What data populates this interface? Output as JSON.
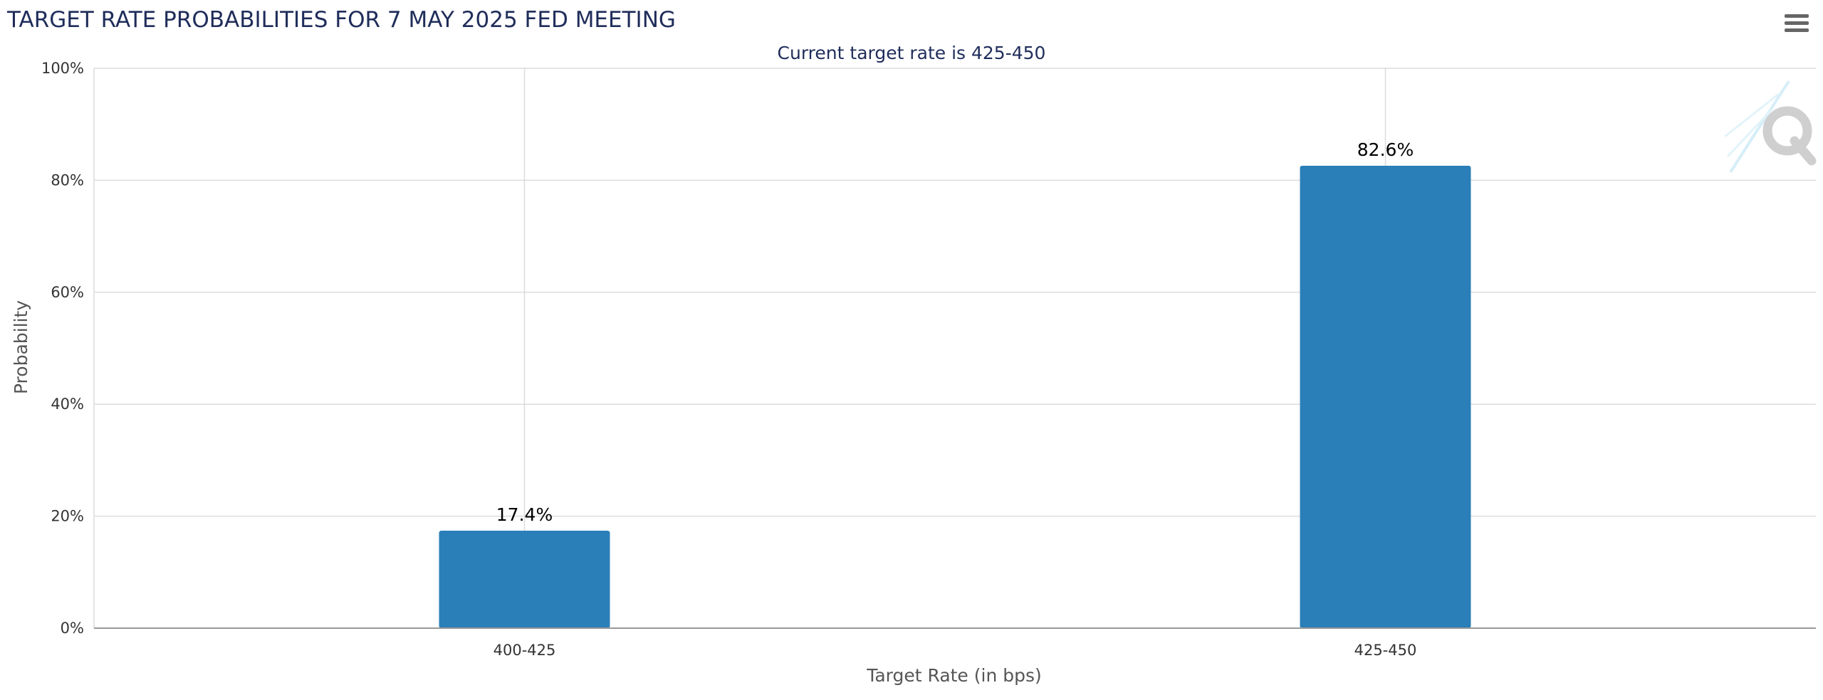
{
  "chart_data": {
    "type": "bar",
    "title": "TARGET RATE PROBABILITIES FOR 7 MAY 2025 FED MEETING",
    "subtitle": "Current target rate is 425-450",
    "xlabel": "Target Rate (in bps)",
    "ylabel": "Probability",
    "categories": [
      "400-425",
      "425-450"
    ],
    "values": [
      17.4,
      82.6
    ],
    "value_labels": [
      "17.4%",
      "82.6%"
    ],
    "ylim": [
      0,
      100
    ],
    "y_ticks": [
      0,
      20,
      40,
      60,
      80,
      100
    ],
    "y_tick_labels": [
      "0%",
      "20%",
      "40%",
      "60%",
      "80%",
      "100%"
    ],
    "grid": true,
    "legend": "none",
    "bar_color": "#2a7fb8",
    "grid_color": "#dcdcdc",
    "axis_color": "#999999"
  },
  "menu": {
    "icon": "hamburger-menu-icon"
  },
  "watermark": {
    "icon": "q-logo-watermark"
  }
}
